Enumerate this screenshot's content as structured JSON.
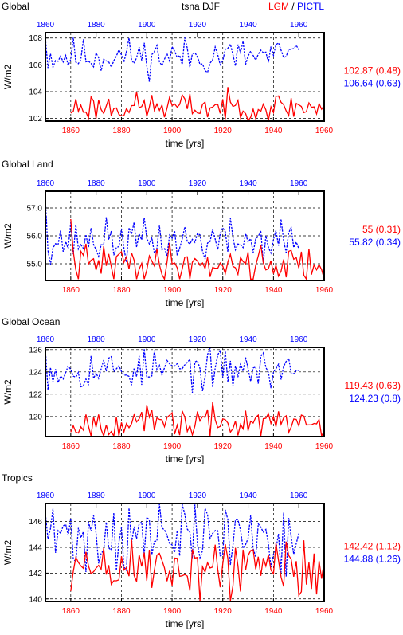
{
  "header": {
    "var_title": "tsna DJF",
    "legend_lgm": "LGM",
    "legend_sep": " / ",
    "legend_pictl": "PICTL"
  },
  "colors": {
    "lgm": "#ff0000",
    "pictl": "#0000ff",
    "axis": "#000000",
    "grid": "#000000"
  },
  "chart_data": [
    {
      "type": "line",
      "title": "Global",
      "xlabel": "time [yrs]",
      "ylabel": "W/m2",
      "xlim": [
        1850,
        1960
      ],
      "ylim": [
        101.8,
        108.4
      ],
      "xticks": [
        1860,
        1880,
        1900,
        1920,
        1940,
        1960
      ],
      "top_xticks": [
        1860,
        1880,
        1900,
        1920,
        1940,
        1960
      ],
      "yticks": [
        102,
        104,
        106,
        108
      ],
      "ytick_labels": [
        "102",
        "104",
        "106",
        "108"
      ],
      "grid": true,
      "series": [
        {
          "color": "#0000ff",
          "style": "dashed",
          "x_start": 1850,
          "x_end": 1950,
          "mean": 106.64,
          "amp": 0.63,
          "seed": 11,
          "first": 108.0
        },
        {
          "color": "#ff0000",
          "style": "solid",
          "x_start": 1860,
          "x_end": 1960,
          "mean": 102.87,
          "amp": 0.48,
          "seed": 23,
          "first": 102.4
        }
      ],
      "stats": [
        {
          "text": "102.87 (0.48)",
          "color": "#ff0000"
        },
        {
          "text": "106.64 (0.63)",
          "color": "#0000ff"
        }
      ]
    },
    {
      "type": "line",
      "title": "Global Land",
      "xlabel": "time [yrs]",
      "ylabel": "W/m2",
      "xlim": [
        1850,
        1960
      ],
      "ylim": [
        54.4,
        57.6
      ],
      "xticks": [
        1860,
        1880,
        1900,
        1920,
        1940,
        1960
      ],
      "top_xticks": [
        1860,
        1880,
        1900,
        1920,
        1940,
        1960
      ],
      "yticks": [
        55.0,
        56.0,
        57.0
      ],
      "ytick_labels": [
        "55.0",
        "56.0",
        "57.0"
      ],
      "grid": true,
      "series": [
        {
          "color": "#0000ff",
          "style": "dashed",
          "x_start": 1850,
          "x_end": 1950,
          "mean": 55.82,
          "amp": 0.34,
          "seed": 37,
          "first": 57.3
        },
        {
          "color": "#ff0000",
          "style": "solid",
          "x_start": 1860,
          "x_end": 1960,
          "mean": 55.0,
          "amp": 0.31,
          "seed": 41,
          "first": 56.6
        }
      ],
      "stats": [
        {
          "text": "55 (0.31)",
          "color": "#ff0000"
        },
        {
          "text": "55.82 (0.34)",
          "color": "#0000ff"
        }
      ]
    },
    {
      "type": "line",
      "title": "Global Ocean",
      "xlabel": "time [yrs]",
      "ylabel": "W/m2",
      "xlim": [
        1850,
        1960
      ],
      "ylim": [
        118.2,
        126.2
      ],
      "xticks": [
        1860,
        1880,
        1900,
        1920,
        1940,
        1960
      ],
      "top_xticks": [
        1860,
        1880,
        1900,
        1920,
        1940,
        1960
      ],
      "yticks": [
        120,
        122,
        124,
        126
      ],
      "ytick_labels": [
        "120",
        "122",
        "124",
        "126"
      ],
      "grid": true,
      "series": [
        {
          "color": "#0000ff",
          "style": "dashed",
          "x_start": 1850,
          "x_end": 1950,
          "mean": 124.23,
          "amp": 0.8,
          "seed": 53,
          "first": 126.0
        },
        {
          "color": "#ff0000",
          "style": "solid",
          "x_start": 1860,
          "x_end": 1960,
          "mean": 119.43,
          "amp": 0.63,
          "seed": 67,
          "first": 118.6
        }
      ],
      "stats": [
        {
          "text": "119.43 (0.63)",
          "color": "#ff0000"
        },
        {
          "text": "124.23 (0.8)",
          "color": "#0000ff"
        }
      ]
    },
    {
      "type": "line",
      "title": "Tropics",
      "xlabel": "time [yrs]",
      "ylabel": "W/m2",
      "xlim": [
        1850,
        1960
      ],
      "ylim": [
        139.8,
        147.4
      ],
      "xticks": [
        1860,
        1880,
        1900,
        1920,
        1940,
        1960
      ],
      "top_xticks": [
        1860,
        1880,
        1900,
        1920,
        1940,
        1960
      ],
      "yticks": [
        140,
        142,
        144,
        146
      ],
      "ytick_labels": [
        "140",
        "142",
        "144",
        "146"
      ],
      "grid": true,
      "series": [
        {
          "color": "#0000ff",
          "style": "dashed",
          "x_start": 1850,
          "x_end": 1950,
          "mean": 144.88,
          "amp": 1.26,
          "seed": 71,
          "first": 146.6
        },
        {
          "color": "#ff0000",
          "style": "solid",
          "x_start": 1860,
          "x_end": 1960,
          "mean": 142.42,
          "amp": 1.12,
          "seed": 89,
          "first": 140.6
        }
      ],
      "stats": [
        {
          "text": "142.42 (1.12)",
          "color": "#ff0000"
        },
        {
          "text": "144.88 (1.26)",
          "color": "#0000ff"
        }
      ]
    }
  ]
}
